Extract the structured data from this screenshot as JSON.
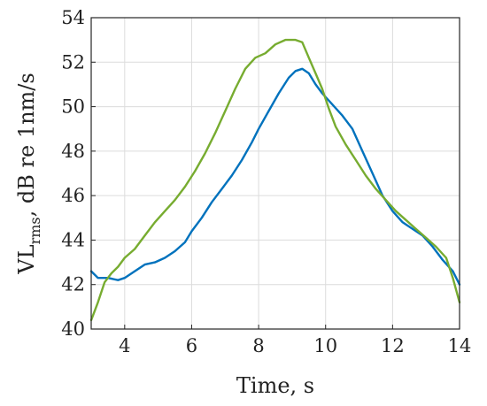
{
  "chart_data": {
    "type": "line",
    "xlabel": "Time, s",
    "ylabel": {
      "base": "VL",
      "sub": "rms",
      "rest": ", dB re 1nm/s"
    },
    "xlim": [
      3,
      14
    ],
    "ylim": [
      40,
      54
    ],
    "xticks": [
      4,
      6,
      8,
      10,
      12,
      14
    ],
    "yticks": [
      40,
      42,
      44,
      46,
      48,
      50,
      52,
      54
    ],
    "grid": true,
    "series": [
      {
        "color": "#0072bd",
        "x": [
          3.0,
          3.2,
          3.5,
          3.8,
          4.0,
          4.3,
          4.6,
          4.9,
          5.2,
          5.5,
          5.8,
          6.0,
          6.3,
          6.6,
          6.9,
          7.2,
          7.5,
          7.8,
          8.0,
          8.3,
          8.6,
          8.9,
          9.1,
          9.3,
          9.5,
          9.7,
          9.9,
          10.2,
          10.5,
          10.8,
          11.1,
          11.4,
          11.7,
          12.0,
          12.3,
          12.6,
          12.9,
          13.2,
          13.5,
          13.8,
          14.0
        ],
        "y": [
          42.6,
          42.3,
          42.3,
          42.2,
          42.3,
          42.6,
          42.9,
          43.0,
          43.2,
          43.5,
          43.9,
          44.4,
          45.0,
          45.7,
          46.3,
          46.9,
          47.6,
          48.4,
          49.0,
          49.8,
          50.6,
          51.3,
          51.6,
          51.7,
          51.5,
          51.0,
          50.6,
          50.1,
          49.6,
          49.0,
          48.0,
          47.0,
          46.0,
          45.3,
          44.8,
          44.5,
          44.2,
          43.7,
          43.1,
          42.6,
          42.0
        ]
      },
      {
        "color": "#77ac30",
        "x": [
          3.0,
          3.1,
          3.2,
          3.4,
          3.6,
          3.8,
          4.0,
          4.3,
          4.6,
          4.9,
          5.2,
          5.5,
          5.8,
          6.1,
          6.4,
          6.7,
          7.0,
          7.3,
          7.6,
          7.9,
          8.2,
          8.5,
          8.8,
          9.1,
          9.3,
          9.5,
          9.7,
          9.9,
          10.1,
          10.3,
          10.6,
          10.9,
          11.2,
          11.5,
          11.8,
          12.1,
          12.4,
          12.7,
          13.0,
          13.3,
          13.6,
          13.8,
          14.0
        ],
        "y": [
          40.4,
          40.8,
          41.2,
          42.1,
          42.5,
          42.8,
          43.2,
          43.6,
          44.2,
          44.8,
          45.3,
          45.8,
          46.4,
          47.1,
          47.9,
          48.8,
          49.8,
          50.8,
          51.7,
          52.2,
          52.4,
          52.8,
          53.0,
          53.0,
          52.9,
          52.2,
          51.5,
          50.8,
          49.9,
          49.1,
          48.3,
          47.6,
          46.9,
          46.3,
          45.8,
          45.3,
          44.9,
          44.5,
          44.1,
          43.7,
          43.2,
          42.3,
          41.2
        ]
      }
    ]
  }
}
